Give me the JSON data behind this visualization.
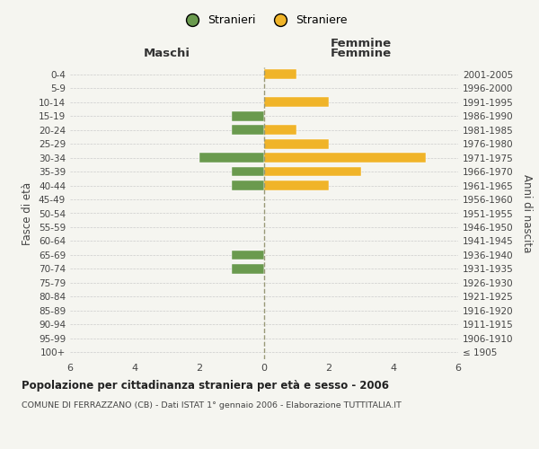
{
  "age_groups": [
    "100+",
    "95-99",
    "90-94",
    "85-89",
    "80-84",
    "75-79",
    "70-74",
    "65-69",
    "60-64",
    "55-59",
    "50-54",
    "45-49",
    "40-44",
    "35-39",
    "30-34",
    "25-29",
    "20-24",
    "15-19",
    "10-14",
    "5-9",
    "0-4"
  ],
  "birth_years": [
    "≤ 1905",
    "1906-1910",
    "1911-1915",
    "1916-1920",
    "1921-1925",
    "1926-1930",
    "1931-1935",
    "1936-1940",
    "1941-1945",
    "1946-1950",
    "1951-1955",
    "1956-1960",
    "1961-1965",
    "1966-1970",
    "1971-1975",
    "1976-1980",
    "1981-1985",
    "1986-1990",
    "1991-1995",
    "1996-2000",
    "2001-2005"
  ],
  "maschi": [
    0,
    0,
    0,
    0,
    0,
    0,
    1,
    1,
    0,
    0,
    0,
    0,
    1,
    1,
    2,
    0,
    1,
    1,
    0,
    0,
    0
  ],
  "femmine": [
    0,
    0,
    0,
    0,
    0,
    0,
    0,
    0,
    0,
    0,
    0,
    0,
    2,
    3,
    5,
    2,
    1,
    0,
    2,
    0,
    1
  ],
  "color_maschi": "#6a9a4e",
  "color_femmine": "#f0b429",
  "title": "Popolazione per cittadinanza straniera per età e sesso - 2006",
  "subtitle": "COMUNE DI FERRAZZANO (CB) - Dati ISTAT 1° gennaio 2006 - Elaborazione TUTTITALIA.IT",
  "label_maschi": "Maschi",
  "label_femmine": "Femmine",
  "ylabel_left": "Fasce di età",
  "ylabel_right": "Anni di nascita",
  "legend_maschi": "Stranieri",
  "legend_femmine": "Straniere",
  "xlim": 6,
  "background_color": "#f5f5f0"
}
